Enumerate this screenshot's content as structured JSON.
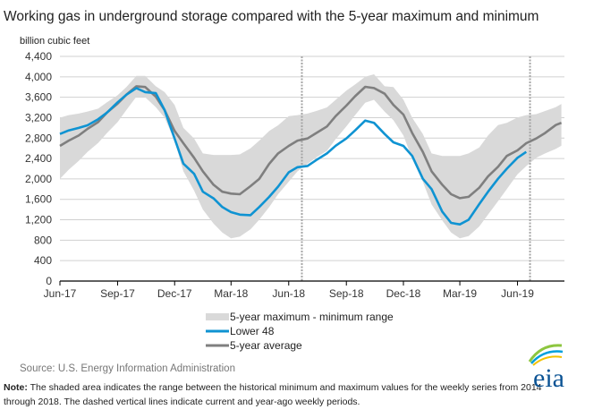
{
  "chart_data": {
    "type": "line",
    "title": "Working gas in underground storage compared with the 5-year maximum and minimum",
    "ylabel": "billion cubic feet",
    "xlabel": "",
    "ylim": [
      0,
      4400
    ],
    "yticks": [
      "0",
      "400",
      "800",
      "1,200",
      "1,600",
      "2,000",
      "2,400",
      "2,800",
      "3,200",
      "3,600",
      "4,000",
      "4,400"
    ],
    "xticks": [
      {
        "label": "Jun-17",
        "date": "2017-06-01"
      },
      {
        "label": "Sep-17",
        "date": "2017-09-01"
      },
      {
        "label": "Dec-17",
        "date": "2017-12-01"
      },
      {
        "label": "Mar-18",
        "date": "2018-03-01"
      },
      {
        "label": "Jun-18",
        "date": "2018-06-01"
      },
      {
        "label": "Sep-18",
        "date": "2018-09-01"
      },
      {
        "label": "Dec-18",
        "date": "2018-12-01"
      },
      {
        "label": "Mar-19",
        "date": "2019-03-01"
      },
      {
        "label": "Jun-19",
        "date": "2019-06-01"
      }
    ],
    "xlim": [
      "2017-06-01",
      "2019-08-20"
    ],
    "grid": true,
    "legend_placement": "bottom-center",
    "reference_lines": [
      "2018-06-22",
      "2019-06-21"
    ],
    "x": [
      "2017-06-01",
      "2017-06-15",
      "2017-07-01",
      "2017-07-15",
      "2017-08-01",
      "2017-08-15",
      "2017-09-01",
      "2017-09-15",
      "2017-10-01",
      "2017-10-15",
      "2017-11-01",
      "2017-11-15",
      "2017-12-01",
      "2017-12-15",
      "2018-01-01",
      "2018-01-15",
      "2018-02-01",
      "2018-02-15",
      "2018-03-01",
      "2018-03-15",
      "2018-04-01",
      "2018-04-15",
      "2018-05-01",
      "2018-05-15",
      "2018-06-01",
      "2018-06-15",
      "2018-07-01",
      "2018-07-15",
      "2018-08-01",
      "2018-08-15",
      "2018-09-01",
      "2018-09-15",
      "2018-10-01",
      "2018-10-15",
      "2018-11-01",
      "2018-11-15",
      "2018-12-01",
      "2018-12-15",
      "2019-01-01",
      "2019-01-15",
      "2019-02-01",
      "2019-02-15",
      "2019-03-01",
      "2019-03-15",
      "2019-04-01",
      "2019-04-15",
      "2019-05-01",
      "2019-05-15",
      "2019-06-01",
      "2019-06-15",
      "2019-07-01",
      "2019-07-15",
      "2019-08-01",
      "2019-08-10"
    ],
    "range": {
      "name": "5-year maximum - minimum range",
      "max": [
        3200,
        3250,
        3280,
        3320,
        3377,
        3500,
        3640,
        3800,
        4020,
        4020,
        3815,
        3700,
        3450,
        3000,
        2793,
        2500,
        2470,
        2470,
        2470,
        2480,
        2600,
        2750,
        2939,
        3050,
        3230,
        3250,
        3280,
        3330,
        3400,
        3550,
        3728,
        3850,
        4000,
        4050,
        3815,
        3800,
        3552,
        3200,
        2880,
        2500,
        2450,
        2450,
        2450,
        2500,
        2618,
        2850,
        3056,
        3100,
        3202,
        3250,
        3270,
        3330,
        3406,
        3470
      ],
      "min": [
        2004,
        2180,
        2355,
        2530,
        2705,
        2900,
        3114,
        3350,
        3611,
        3600,
        3406,
        3200,
        2750,
        2150,
        1770,
        1400,
        1128,
        950,
        836,
        870,
        1011,
        1200,
        1449,
        1700,
        1945,
        2150,
        2296,
        2420,
        2550,
        2780,
        3027,
        3250,
        3494,
        3550,
        3319,
        3150,
        2851,
        2400,
        1945,
        1500,
        1186,
        950,
        836,
        880,
        1069,
        1300,
        1566,
        1800,
        2092,
        2250,
        2413,
        2500,
        2588,
        2650
      ]
    },
    "series": [
      {
        "name": "Lower 48",
        "color": "#0f93d2",
        "values": [
          2880,
          2950,
          3000,
          3050,
          3170,
          3300,
          3500,
          3650,
          3780,
          3700,
          3680,
          3350,
          2790,
          2300,
          2100,
          1750,
          1620,
          1450,
          1350,
          1300,
          1290,
          1450,
          1650,
          1850,
          2130,
          2230,
          2255,
          2370,
          2500,
          2650,
          2793,
          2950,
          3143,
          3100,
          2880,
          2717,
          2647,
          2450,
          2004,
          1800,
          1361,
          1140,
          1110,
          1200,
          1507,
          1750,
          2004,
          2200,
          2413,
          2530,
          null,
          null,
          null,
          null
        ]
      },
      {
        "name": "5-year average",
        "color": "#7f7f7f",
        "values": [
          2647,
          2750,
          2850,
          2980,
          3114,
          3300,
          3477,
          3650,
          3815,
          3800,
          3611,
          3348,
          2939,
          2700,
          2413,
          2150,
          1887,
          1750,
          1712,
          1700,
          1858,
          2000,
          2296,
          2500,
          2647,
          2750,
          2793,
          2900,
          3027,
          3230,
          3436,
          3620,
          3804,
          3780,
          3669,
          3450,
          3260,
          2900,
          2530,
          2150,
          1887,
          1700,
          1624,
          1650,
          1829,
          2050,
          2238,
          2450,
          2559,
          2700,
          2793,
          2900,
          3056,
          3100
        ]
      }
    ],
    "colors": {
      "range": "#d9d9d9",
      "grid": "#d0d0d0",
      "axis": "#000000",
      "reference_line": "#a6a6a6"
    }
  },
  "source": "Source:  U.S. Energy Information Administration",
  "note_label": "Note:",
  "note_line1": " The shaded area indicates the range between the historical minimum and maximum values for the weekly series from 2014",
  "note_line2": "through 2018. The dashed vertical lines indicate current and year-ago weekly periods.",
  "logo": "eia"
}
